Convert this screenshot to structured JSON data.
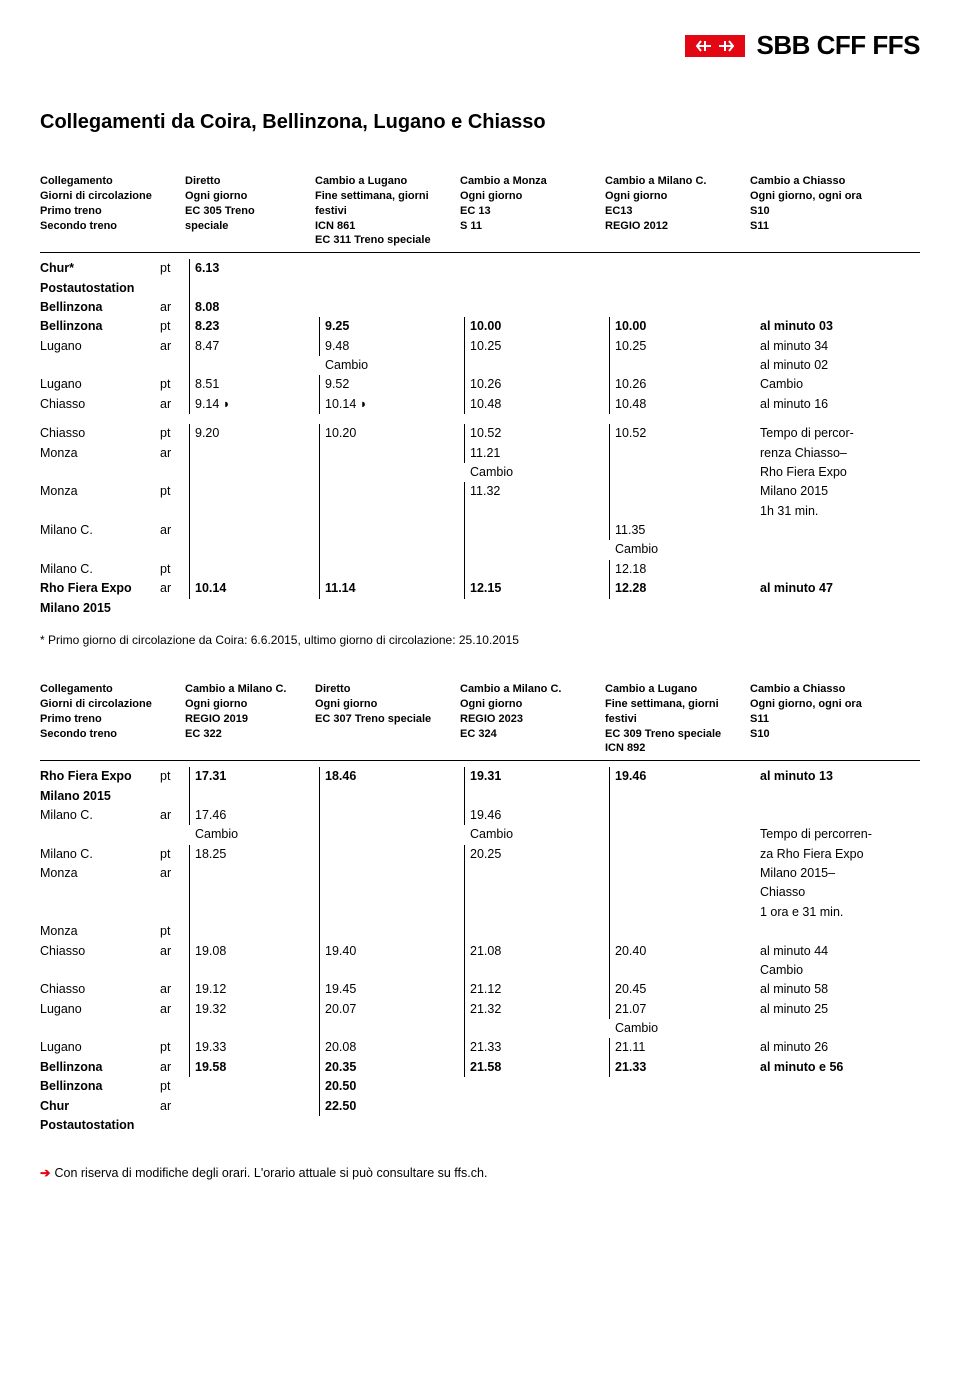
{
  "brand": "SBB CFF FFS",
  "title": "Collegamenti da Coira, Bellinzona, Lugano e Chiasso",
  "tableHeaders1": {
    "labels": [
      "Collegamento",
      "Giorni di circolazione",
      "Primo treno",
      "Secondo treno"
    ],
    "col1": [
      "Diretto",
      "Ogni giorno",
      "EC 305 Treno",
      "speciale"
    ],
    "col2": [
      "Cambio a Lugano",
      "Fine settimana, giorni festivi",
      "ICN 861",
      "EC 311 Treno speciale"
    ],
    "col3": [
      "Cambio a Monza",
      "Ogni giorno",
      "EC 13",
      "S 11"
    ],
    "col4": [
      "Cambio a Milano C.",
      "Ogni giorno",
      "EC13",
      "REGIO 2012"
    ],
    "col5": [
      "Cambio a Chiasso",
      "Ogni giorno, ogni ora",
      "S10",
      "S11"
    ]
  },
  "rows1": [
    {
      "station": "Chur*",
      "bold": true,
      "ptar": "pt",
      "c1": "6.13",
      "c2": "",
      "c3": "",
      "c4": "",
      "c5": "",
      "v": [
        1,
        0,
        0,
        0,
        0
      ]
    },
    {
      "station": "Postautostation",
      "bold": true,
      "ptar": "",
      "c1": "",
      "c2": "",
      "c3": "",
      "c4": "",
      "c5": "",
      "v": [
        1,
        0,
        0,
        0,
        0
      ]
    },
    {
      "station": "Bellinzona",
      "bold": true,
      "ptar": "ar",
      "c1": "8.08",
      "c2": "",
      "c3": "",
      "c4": "",
      "c5": "",
      "v": [
        1,
        0,
        0,
        0,
        0
      ]
    },
    {
      "station": "Bellinzona",
      "bold": true,
      "ptar": "pt",
      "c1": "8.23",
      "c2": "9.25",
      "c3": "10.00",
      "c4": "10.00",
      "c5": "al minuto 03",
      "v": [
        1,
        1,
        1,
        1,
        0
      ]
    },
    {
      "station": "Lugano",
      "bold": false,
      "ptar": "ar",
      "c1": "8.47",
      "c2": "9.48",
      "c3": "10.25",
      "c4": "10.25",
      "c5": "al minuto  34",
      "v": [
        1,
        1,
        1,
        1,
        0
      ]
    },
    {
      "station": "",
      "bold": false,
      "ptar": "",
      "c1": "",
      "c2": "Cambio",
      "c3": "",
      "c4": "",
      "c5": "al minuto  02",
      "v": [
        1,
        0,
        1,
        1,
        0
      ]
    },
    {
      "station": "Lugano",
      "bold": false,
      "ptar": "pt",
      "c1": "8.51",
      "c2": "9.52",
      "c3": "10.26",
      "c4": "10.26",
      "c5": "Cambio",
      "v": [
        1,
        1,
        1,
        1,
        0
      ]
    },
    {
      "station": "Chiasso",
      "bold": false,
      "ptar": "ar",
      "c1": "9.14 ◗",
      "c2": "10.14 ◗",
      "c3": "10.48",
      "c4": "10.48",
      "c5": "al minuto  16",
      "v": [
        1,
        1,
        1,
        1,
        0
      ]
    }
  ],
  "rows1b": [
    {
      "station": "Chiasso",
      "bold": false,
      "ptar": "pt",
      "c1": "9.20",
      "c2": "10.20",
      "c3": "10.52",
      "c4": "10.52",
      "c5": "Tempo di percor-",
      "v": [
        1,
        1,
        1,
        1,
        0
      ]
    },
    {
      "station": "Monza",
      "bold": false,
      "ptar": "ar",
      "c1": "",
      "c2": "",
      "c3": "11.21",
      "c4": "",
      "c5": "renza Chiasso–",
      "v": [
        1,
        1,
        1,
        1,
        0
      ]
    },
    {
      "station": "",
      "bold": false,
      "ptar": "",
      "c1": "",
      "c2": "",
      "c3": "Cambio",
      "c4": "",
      "c5": "Rho Fiera Expo",
      "v": [
        1,
        1,
        0,
        1,
        0
      ]
    },
    {
      "station": "Monza",
      "bold": false,
      "ptar": "pt",
      "c1": "",
      "c2": "",
      "c3": "11.32",
      "c4": "",
      "c5": "Milano 2015",
      "v": [
        1,
        1,
        1,
        1,
        0
      ]
    },
    {
      "station": "",
      "bold": false,
      "ptar": "",
      "c1": "",
      "c2": "",
      "c3": "",
      "c4": "",
      "c5": "1h 31 min.",
      "v": [
        1,
        1,
        1,
        1,
        0
      ]
    },
    {
      "station": "Milano C.",
      "bold": false,
      "ptar": "ar",
      "c1": "",
      "c2": "",
      "c3": "",
      "c4": "11.35",
      "c5": "",
      "v": [
        1,
        1,
        1,
        1,
        0
      ]
    },
    {
      "station": "",
      "bold": false,
      "ptar": "",
      "c1": "",
      "c2": "",
      "c3": "",
      "c4": "Cambio",
      "c5": "",
      "v": [
        1,
        1,
        1,
        0,
        0
      ]
    },
    {
      "station": "Milano C.",
      "bold": false,
      "ptar": "pt",
      "c1": "",
      "c2": "",
      "c3": "",
      "c4": "12.18",
      "c5": "",
      "v": [
        1,
        1,
        1,
        1,
        0
      ]
    },
    {
      "station": "Rho Fiera Expo",
      "bold": true,
      "ptar": "ar",
      "c1": "10.14",
      "c2": "11.14",
      "c3": "12.15",
      "c4": "12.28",
      "c5": "al minuto  47",
      "v": [
        1,
        1,
        1,
        1,
        0
      ]
    },
    {
      "station": "Milano 2015",
      "bold": true,
      "ptar": "",
      "c1": "",
      "c2": "",
      "c3": "",
      "c4": "",
      "c5": "",
      "v": [
        0,
        0,
        0,
        0,
        0
      ]
    }
  ],
  "footnote1": "* Primo giorno di circolazione da Coira: 6.6.2015, ultimo giorno di circolazione: 25.10.2015",
  "tableHeaders2": {
    "labels": [
      "Collegamento",
      "Giorni di circolazione",
      "Primo treno",
      "Secondo treno"
    ],
    "col1": [
      "Cambio a Milano C.",
      "Ogni giorno",
      "REGIO 2019",
      "EC 322"
    ],
    "col2": [
      "Diretto",
      "Ogni giorno",
      "EC 307 Treno speciale",
      ""
    ],
    "col3": [
      "Cambio a Milano C.",
      "Ogni giorno",
      "REGIO 2023",
      "EC 324"
    ],
    "col4": [
      "Cambio a Lugano",
      "Fine settimana, giorni festivi",
      "EC 309 Treno speciale",
      "ICN 892"
    ],
    "col5": [
      "Cambio a Chiasso",
      "Ogni giorno, ogni ora",
      "S11",
      "S10"
    ]
  },
  "rows2": [
    {
      "station": "Rho Fiera Expo",
      "bold": true,
      "ptar": "pt",
      "c1": "17.31",
      "c2": "18.46",
      "c3": "19.31",
      "c4": "19.46",
      "c5": "al minuto  13",
      "v": [
        1,
        1,
        1,
        1,
        0
      ]
    },
    {
      "station": "Milano 2015",
      "bold": true,
      "ptar": "",
      "c1": "",
      "c2": "",
      "c3": "",
      "c4": "",
      "c5": "",
      "v": [
        1,
        1,
        1,
        1,
        0
      ]
    },
    {
      "station": "Milano C.",
      "bold": false,
      "ptar": "ar",
      "c1": "17.46",
      "c2": "",
      "c3": "19.46",
      "c4": "",
      "c5": "",
      "v": [
        1,
        1,
        1,
        1,
        0
      ]
    },
    {
      "station": "",
      "bold": false,
      "ptar": "",
      "c1": "Cambio",
      "c2": "",
      "c3": "Cambio",
      "c4": "",
      "c5": "Tempo di percorren-",
      "v": [
        0,
        1,
        0,
        1,
        0
      ]
    },
    {
      "station": "Milano C.",
      "bold": false,
      "ptar": "pt",
      "c1": "18.25",
      "c2": "",
      "c3": "20.25",
      "c4": "",
      "c5": "za Rho Fiera Expo",
      "v": [
        1,
        1,
        1,
        1,
        0
      ]
    },
    {
      "station": "Monza",
      "bold": false,
      "ptar": "ar",
      "c1": "",
      "c2": "",
      "c3": "",
      "c4": "",
      "c5": "Milano 2015–",
      "v": [
        1,
        1,
        1,
        1,
        0
      ]
    },
    {
      "station": "",
      "bold": false,
      "ptar": "",
      "c1": "",
      "c2": "",
      "c3": "",
      "c4": "",
      "c5": "Chiasso",
      "v": [
        1,
        1,
        1,
        1,
        0
      ]
    },
    {
      "station": "",
      "bold": false,
      "ptar": "",
      "c1": "",
      "c2": "",
      "c3": "",
      "c4": "",
      "c5": "1 ora e 31 min.",
      "v": [
        1,
        1,
        1,
        1,
        0
      ]
    },
    {
      "station": "Monza",
      "bold": false,
      "ptar": "pt",
      "c1": "",
      "c2": "",
      "c3": "",
      "c4": "",
      "c5": "",
      "v": [
        1,
        1,
        1,
        1,
        0
      ]
    },
    {
      "station": "Chiasso",
      "bold": false,
      "ptar": "ar",
      "c1": "19.08",
      "c2": "19.40",
      "c3": "21.08",
      "c4": "20.40",
      "c5": "al minuto  44",
      "v": [
        1,
        1,
        1,
        1,
        0
      ]
    },
    {
      "station": "",
      "bold": false,
      "ptar": "",
      "c1": "",
      "c2": "",
      "c3": "",
      "c4": "",
      "c5": "Cambio",
      "v": [
        1,
        1,
        1,
        1,
        0
      ]
    },
    {
      "station": "Chiasso",
      "bold": false,
      "ptar": "ar",
      "c1": "19.12",
      "c2": "19.45",
      "c3": "21.12",
      "c4": "20.45",
      "c5": "al minuto  58",
      "v": [
        1,
        1,
        1,
        1,
        0
      ]
    },
    {
      "station": "Lugano",
      "bold": false,
      "ptar": "ar",
      "c1": "19.32",
      "c2": "20.07",
      "c3": "21.32",
      "c4": "21.07",
      "c5": "al minuto  25",
      "v": [
        1,
        1,
        1,
        1,
        0
      ]
    },
    {
      "station": "",
      "bold": false,
      "ptar": "",
      "c1": "",
      "c2": "",
      "c3": "",
      "c4": "Cambio",
      "c5": "",
      "v": [
        1,
        1,
        1,
        0,
        0
      ]
    },
    {
      "station": "Lugano",
      "bold": false,
      "ptar": "pt",
      "c1": "19.33",
      "c2": "20.08",
      "c3": "21.33",
      "c4": "21.11",
      "c5": "al minuto  26",
      "v": [
        1,
        1,
        1,
        1,
        0
      ]
    },
    {
      "station": "Bellinzona",
      "bold": true,
      "ptar": "ar",
      "c1": "19.58",
      "c2": "20.35",
      "c3": "21.58",
      "c4": "21.33",
      "c5": "al minuto e 56",
      "v": [
        1,
        1,
        1,
        1,
        0
      ]
    },
    {
      "station": "Bellinzona",
      "bold": true,
      "ptar": "pt",
      "c1": "",
      "c2": "20.50",
      "c3": "",
      "c4": "",
      "c5": "",
      "v": [
        0,
        1,
        0,
        0,
        0
      ]
    },
    {
      "station": "Chur",
      "bold": true,
      "ptar": "ar",
      "c1": "",
      "c2": "22.50",
      "c3": "",
      "c4": "",
      "c5": "",
      "v": [
        0,
        1,
        0,
        0,
        0
      ]
    },
    {
      "station": "Postautostation",
      "bold": true,
      "ptar": "",
      "c1": "",
      "c2": "",
      "c3": "",
      "c4": "",
      "c5": "",
      "v": [
        0,
        0,
        0,
        0,
        0
      ]
    }
  ],
  "bottomNote": "Con riserva di modifiche degli orari. L'orario attuale si può consultare su ffs.ch."
}
